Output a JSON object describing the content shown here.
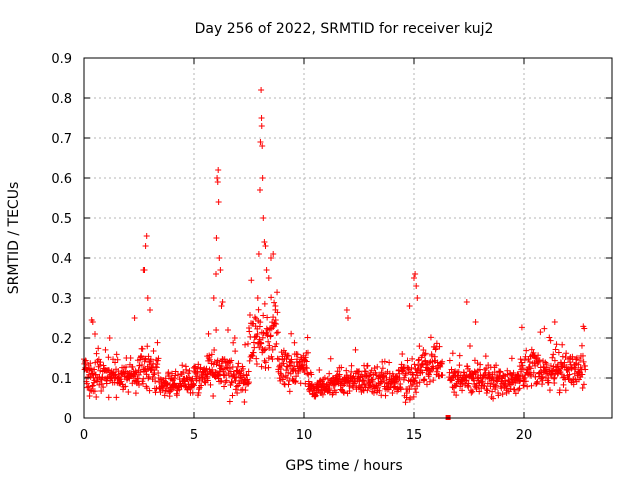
{
  "chart_data": {
    "type": "scatter",
    "title": "Day 256 of 2022, SRMTID for receiver kuj2",
    "xlabel": "GPS time / hours",
    "ylabel": "SRMTID / TECUs",
    "xlim": [
      0,
      24
    ],
    "ylim": [
      0,
      0.9
    ],
    "xticks": [
      0,
      5,
      10,
      15,
      20
    ],
    "yticks": [
      0,
      0.1,
      0.2,
      0.3,
      0.4,
      0.5,
      0.6,
      0.7,
      0.8,
      0.9
    ],
    "xtick_labels": [
      "0",
      "5",
      "10",
      "15",
      "20"
    ],
    "ytick_labels": [
      "0",
      "0.1",
      "0.2",
      "0.3",
      "0.4",
      "0.5",
      "0.6",
      "0.7",
      "0.8",
      "0.9"
    ],
    "grid": true,
    "marker": "+",
    "series": [
      {
        "name": "SRMTID",
        "color": "#ff0000",
        "note": "approx. 1500 points, one sample every ~0.015 h, values read from the figure",
        "segments": [
          {
            "x": [
              0.0,
              1.7
            ],
            "base": 0.1,
            "spread": 0.05,
            "min": 0.04,
            "max": 0.2
          },
          {
            "x": [
              1.7,
              2.5
            ],
            "base": 0.1,
            "spread": 0.035,
            "min": 0.03,
            "max": 0.15
          },
          {
            "x": [
              2.5,
              3.4
            ],
            "base": 0.12,
            "spread": 0.05,
            "min": 0.05,
            "max": 0.25
          },
          {
            "x": [
              3.4,
              5.0
            ],
            "base": 0.085,
            "spread": 0.03,
            "min": 0.03,
            "max": 0.15
          },
          {
            "x": [
              5.0,
              5.6
            ],
            "base": 0.1,
            "spread": 0.05,
            "min": 0.03,
            "max": 0.2
          },
          {
            "x": [
              5.6,
              6.6
            ],
            "base": 0.12,
            "spread": 0.06,
            "min": 0.05,
            "max": 0.22
          },
          {
            "x": [
              6.6,
              7.5
            ],
            "base": 0.1,
            "spread": 0.05,
            "min": 0.04,
            "max": 0.2
          },
          {
            "x": [
              7.5,
              8.8
            ],
            "base": 0.2,
            "spread": 0.08,
            "min": 0.05,
            "max": 0.35
          },
          {
            "x": [
              8.8,
              10.2
            ],
            "base": 0.13,
            "spread": 0.05,
            "min": 0.06,
            "max": 0.22
          },
          {
            "x": [
              10.2,
              11.2
            ],
            "base": 0.075,
            "spread": 0.025,
            "min": 0.03,
            "max": 0.12
          },
          {
            "x": [
              11.2,
              14.3
            ],
            "base": 0.09,
            "spread": 0.035,
            "min": 0.04,
            "max": 0.18
          },
          {
            "x": [
              14.3,
              15.2
            ],
            "base": 0.1,
            "spread": 0.05,
            "min": 0.03,
            "max": 0.2
          },
          {
            "x": [
              15.2,
              16.3
            ],
            "base": 0.13,
            "spread": 0.05,
            "min": 0.06,
            "max": 0.25
          },
          {
            "x": [
              16.6,
              19.8
            ],
            "base": 0.095,
            "spread": 0.035,
            "min": 0.04,
            "max": 0.18
          },
          {
            "x": [
              19.8,
              22.8
            ],
            "base": 0.12,
            "spread": 0.05,
            "min": 0.04,
            "max": 0.24
          }
        ],
        "peaks": [
          {
            "x": 0.35,
            "y": 0.245
          },
          {
            "x": 0.4,
            "y": 0.24
          },
          {
            "x": 0.5,
            "y": 0.21
          },
          {
            "x": 2.3,
            "y": 0.25
          },
          {
            "x": 2.7,
            "y": 0.37
          },
          {
            "x": 2.75,
            "y": 0.37
          },
          {
            "x": 2.8,
            "y": 0.43
          },
          {
            "x": 2.85,
            "y": 0.455
          },
          {
            "x": 2.9,
            "y": 0.3
          },
          {
            "x": 3.0,
            "y": 0.27
          },
          {
            "x": 5.9,
            "y": 0.3
          },
          {
            "x": 6.0,
            "y": 0.36
          },
          {
            "x": 6.02,
            "y": 0.45
          },
          {
            "x": 6.05,
            "y": 0.6
          },
          {
            "x": 6.08,
            "y": 0.59
          },
          {
            "x": 6.1,
            "y": 0.62
          },
          {
            "x": 6.12,
            "y": 0.54
          },
          {
            "x": 6.15,
            "y": 0.4
          },
          {
            "x": 6.2,
            "y": 0.37
          },
          {
            "x": 6.25,
            "y": 0.28
          },
          {
            "x": 6.3,
            "y": 0.29
          },
          {
            "x": 7.9,
            "y": 0.3
          },
          {
            "x": 7.95,
            "y": 0.41
          },
          {
            "x": 8.0,
            "y": 0.57
          },
          {
            "x": 8.02,
            "y": 0.69
          },
          {
            "x": 8.05,
            "y": 0.82
          },
          {
            "x": 8.07,
            "y": 0.75
          },
          {
            "x": 8.08,
            "y": 0.73
          },
          {
            "x": 8.1,
            "y": 0.68
          },
          {
            "x": 8.12,
            "y": 0.6
          },
          {
            "x": 8.15,
            "y": 0.5
          },
          {
            "x": 8.2,
            "y": 0.44
          },
          {
            "x": 8.25,
            "y": 0.43
          },
          {
            "x": 8.3,
            "y": 0.37
          },
          {
            "x": 8.4,
            "y": 0.35
          },
          {
            "x": 8.5,
            "y": 0.4
          },
          {
            "x": 8.6,
            "y": 0.41
          },
          {
            "x": 8.7,
            "y": 0.28
          },
          {
            "x": 11.95,
            "y": 0.27
          },
          {
            "x": 12.0,
            "y": 0.25
          },
          {
            "x": 14.8,
            "y": 0.28
          },
          {
            "x": 15.0,
            "y": 0.35
          },
          {
            "x": 15.05,
            "y": 0.36
          },
          {
            "x": 15.1,
            "y": 0.33
          },
          {
            "x": 15.15,
            "y": 0.3
          },
          {
            "x": 17.4,
            "y": 0.29
          },
          {
            "x": 17.8,
            "y": 0.24
          },
          {
            "x": 21.4,
            "y": 0.24
          }
        ],
        "highlight": {
          "x": 16.55,
          "y": 0.0,
          "color": "#ff0000"
        }
      }
    ]
  }
}
